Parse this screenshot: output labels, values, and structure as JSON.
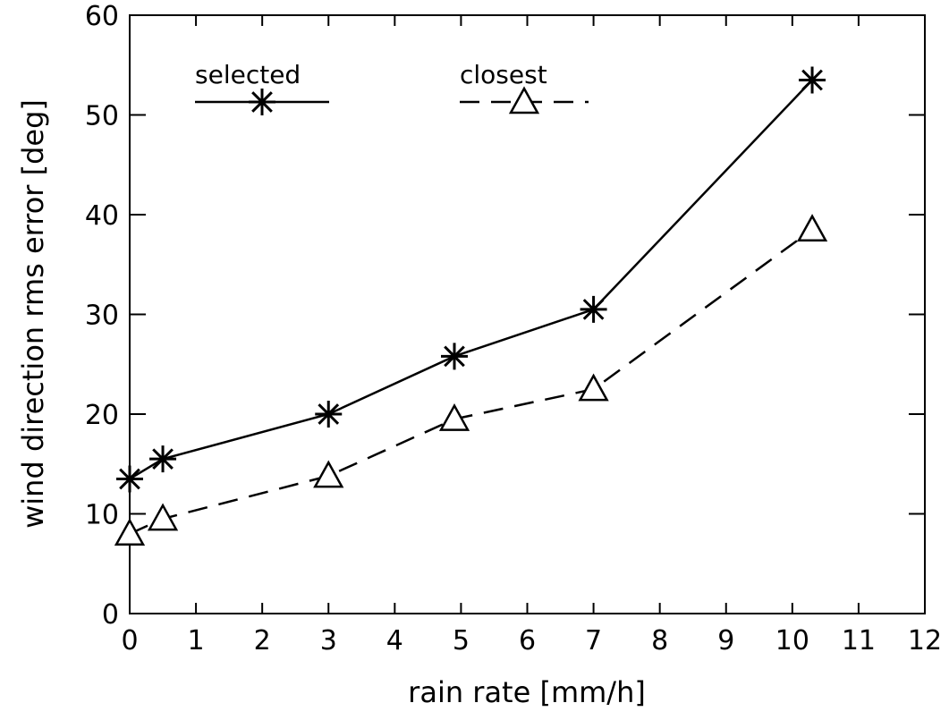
{
  "chart_data": {
    "type": "line",
    "xlabel": "rain rate [mm/h]",
    "ylabel": "wind direction rms error [deg]",
    "xlim": [
      0,
      12
    ],
    "ylim": [
      0,
      60
    ],
    "xticks": [
      0,
      1,
      2,
      3,
      4,
      5,
      6,
      7,
      8,
      9,
      10,
      11,
      12
    ],
    "yticks": [
      0,
      10,
      20,
      30,
      40,
      50,
      60
    ],
    "grid": false,
    "legend_position": "top",
    "series": [
      {
        "name": "selected",
        "style": "solid",
        "marker": "asterisk",
        "x": [
          0,
          0.5,
          3,
          4.9,
          7,
          10.3
        ],
        "y": [
          13.5,
          15.5,
          20,
          25.8,
          30.5,
          53.5
        ]
      },
      {
        "name": "closest",
        "style": "dashed",
        "marker": "triangle",
        "x": [
          0,
          0.5,
          3,
          4.9,
          7,
          10.3
        ],
        "y": [
          8,
          9.5,
          13.8,
          19.5,
          22.5,
          38.5
        ]
      }
    ]
  }
}
